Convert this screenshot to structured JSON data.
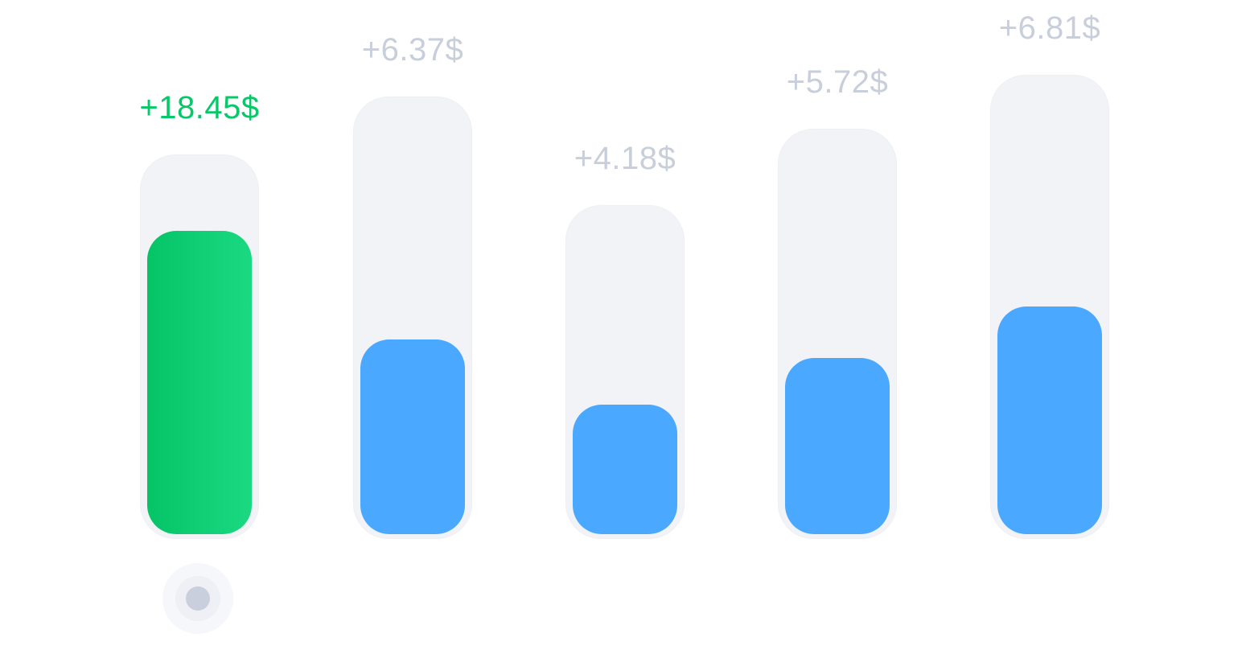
{
  "chart_data": {
    "type": "bar",
    "categories": [
      "",
      "",
      "",
      "",
      ""
    ],
    "values": [
      18.45,
      6.37,
      4.18,
      5.72,
      6.81
    ],
    "fill_ratios": [
      0.81,
      0.45,
      0.4,
      0.44,
      0.5
    ],
    "labels": [
      "+18.45$",
      "+6.37$",
      "+4.18$",
      "+5.72$",
      "+6.81$"
    ],
    "active_index": 0,
    "colors": {
      "active_fill_start": "#05c466",
      "active_fill_end": "#1bd982",
      "active_label": "#07c868",
      "idle_fill": "#4aa8ff",
      "idle_label": "#c9cedb",
      "track": "#f2f3f7",
      "timeline_dot": "#c9cfdc",
      "timeline_dash": "#d6dae5"
    },
    "title": "",
    "xlabel": "",
    "ylabel": "",
    "grid": false,
    "legend": "none"
  },
  "icons": {
    "timeline_marker": "timeline-dot-icon"
  }
}
